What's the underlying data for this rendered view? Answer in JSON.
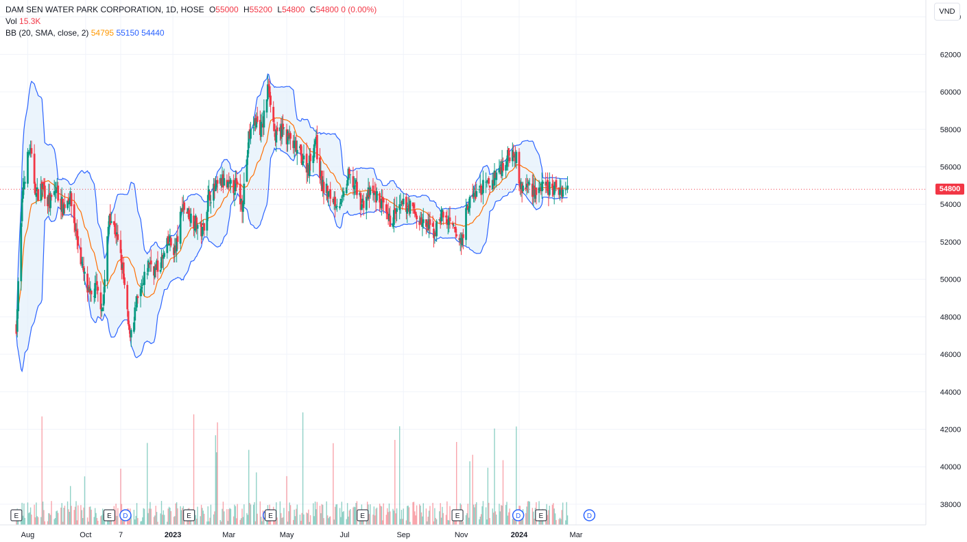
{
  "legend": {
    "title": "DAM SEN WATER PARK CORPORATION, 1D, HOSE",
    "open_label": "O",
    "open": "55000",
    "high_label": "H",
    "high": "55200",
    "low_label": "L",
    "low": "54800",
    "close_label": "C",
    "close": "54800",
    "change": "0 (0.00%)",
    "vol_label": "Vol",
    "vol_value": "15.3K",
    "bb_label": "BB (20, SMA, close, 2)",
    "bb_basis": "54795",
    "bb_upper": "55150",
    "bb_lower": "54440"
  },
  "currency": "VND",
  "last_price_label": "54800",
  "colors": {
    "up": "#089981",
    "down": "#f23645",
    "basis": "#ff6d00",
    "bands": "#2962ff",
    "band_fill": "#e3effb"
  },
  "chart_data": {
    "type": "candlestick",
    "title": "DAM SEN WATER PARK CORPORATION, 1D, HOSE",
    "x_ticks": [
      "Aug",
      "Oct",
      "7",
      "2023",
      "Mar",
      "May",
      "Jul",
      "Sep",
      "Nov",
      "2024",
      "Mar"
    ],
    "y_ticks": [
      "64000",
      "62000",
      "60000",
      "58000",
      "56000",
      "54000",
      "52000",
      "50000",
      "48000",
      "46000",
      "44000",
      "42000",
      "40000",
      "38000"
    ],
    "ylim": [
      36900,
      64900
    ],
    "last_price": 54800,
    "close_path": [
      [
        "2022-07-20",
        47500
      ],
      [
        "2022-07-27",
        55000
      ],
      [
        "2022-08-03",
        57000
      ],
      [
        "2022-08-10",
        54500
      ],
      [
        "2022-08-17",
        55000
      ],
      [
        "2022-08-24",
        54000
      ],
      [
        "2022-08-31",
        54800
      ],
      [
        "2022-09-07",
        53800
      ],
      [
        "2022-09-14",
        54500
      ],
      [
        "2022-09-21",
        52500
      ],
      [
        "2022-09-28",
        50500
      ],
      [
        "2022-10-05",
        49000
      ],
      [
        "2022-10-12",
        49500
      ],
      [
        "2022-10-19",
        48500
      ],
      [
        "2022-10-26",
        53500
      ],
      [
        "2022-11-02",
        52500
      ],
      [
        "2022-11-09",
        50500
      ],
      [
        "2022-11-16",
        47000
      ],
      [
        "2022-11-23",
        48500
      ],
      [
        "2022-11-30",
        49500
      ],
      [
        "2022-12-07",
        51000
      ],
      [
        "2022-12-14",
        50500
      ],
      [
        "2022-12-21",
        51000
      ],
      [
        "2022-12-28",
        52000
      ],
      [
        "2023-01-04",
        51500
      ],
      [
        "2023-01-11",
        54000
      ],
      [
        "2023-01-18",
        53500
      ],
      [
        "2023-02-01",
        52500
      ],
      [
        "2023-02-08",
        54500
      ],
      [
        "2023-02-15",
        54800
      ],
      [
        "2023-02-22",
        55200
      ],
      [
        "2023-03-01",
        54800
      ],
      [
        "2023-03-08",
        55000
      ],
      [
        "2023-03-15",
        54000
      ],
      [
        "2023-03-22",
        57500
      ],
      [
        "2023-03-29",
        58500
      ],
      [
        "2023-04-05",
        58000
      ],
      [
        "2023-04-12",
        60500
      ],
      [
        "2023-04-19",
        57500
      ],
      [
        "2023-04-26",
        58000
      ],
      [
        "2023-05-03",
        57500
      ],
      [
        "2023-05-10",
        57000
      ],
      [
        "2023-05-17",
        56500
      ],
      [
        "2023-05-24",
        56000
      ],
      [
        "2023-05-31",
        57500
      ],
      [
        "2023-06-07",
        55000
      ],
      [
        "2023-06-14",
        54500
      ],
      [
        "2023-06-21",
        54200
      ],
      [
        "2023-06-28",
        54000
      ],
      [
        "2023-07-05",
        55500
      ],
      [
        "2023-07-12",
        55000
      ],
      [
        "2023-07-19",
        54000
      ],
      [
        "2023-07-26",
        54500
      ],
      [
        "2023-08-02",
        54500
      ],
      [
        "2023-08-09",
        54000
      ],
      [
        "2023-08-16",
        53000
      ],
      [
        "2023-08-23",
        53500
      ],
      [
        "2023-08-30",
        53800
      ],
      [
        "2023-09-06",
        54000
      ],
      [
        "2023-09-13",
        53500
      ],
      [
        "2023-09-20",
        53000
      ],
      [
        "2023-09-27",
        52800
      ],
      [
        "2023-10-04",
        52500
      ],
      [
        "2023-10-11",
        53500
      ],
      [
        "2023-10-18",
        53000
      ],
      [
        "2023-10-25",
        52500
      ],
      [
        "2023-11-01",
        52000
      ],
      [
        "2023-11-08",
        54000
      ],
      [
        "2023-11-15",
        54500
      ],
      [
        "2023-11-22",
        54800
      ],
      [
        "2023-11-29",
        55000
      ],
      [
        "2023-12-06",
        55500
      ],
      [
        "2023-12-13",
        56000
      ],
      [
        "2023-12-20",
        56500
      ],
      [
        "2023-12-27",
        57000
      ],
      [
        "2024-01-03",
        54800
      ],
      [
        "2024-01-10",
        55000
      ],
      [
        "2024-01-17",
        54800
      ],
      [
        "2024-01-24",
        54800
      ],
      [
        "2024-02-07",
        54800
      ],
      [
        "2024-02-14",
        54800
      ],
      [
        "2024-02-21",
        54800
      ]
    ],
    "events": [
      {
        "date": "2022-07-20",
        "label": "E"
      },
      {
        "date": "2022-10-26",
        "label": "E"
      },
      {
        "date": "2022-11-12",
        "label": "D"
      },
      {
        "date": "2023-01-18",
        "label": "E"
      },
      {
        "date": "2023-04-12",
        "label": "D"
      },
      {
        "date": "2023-04-14",
        "label": "E"
      },
      {
        "date": "2023-07-20",
        "label": "E"
      },
      {
        "date": "2023-10-28",
        "label": "E"
      },
      {
        "date": "2023-12-31",
        "label": "D"
      },
      {
        "date": "2024-01-24",
        "label": "E"
      },
      {
        "date": "2024-03-15",
        "label": "D"
      }
    ]
  }
}
